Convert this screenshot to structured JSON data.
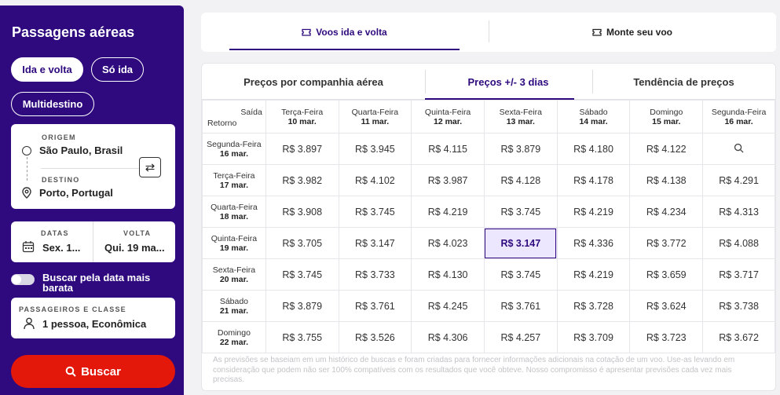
{
  "sidebar": {
    "title": "Passagens aéreas",
    "trip_types": [
      "Ida e volta",
      "Só ida",
      "Multidestino"
    ],
    "origin_label": "ORIGEM",
    "origin_value": "São Paulo, Brasil",
    "destination_label": "DESTINO",
    "destination_value": "Porto, Portugal",
    "swap_icon": "⇄",
    "dates_label": "DATAS",
    "dates_value": "Sex. 1...",
    "return_label": "VOLTA",
    "return_value": "Qui. 19 ma...",
    "cheapest_toggle_label": "Buscar pela data mais barata",
    "passengers_label": "PASSAGEIROS E CLASSE",
    "passengers_value": "1 pessoa, Econômica",
    "search_button": "Buscar"
  },
  "top_tabs": [
    "Voos ida e volta",
    "Monte seu voo"
  ],
  "sub_tabs": [
    "Preços por companhia aérea",
    "Preços +/- 3 dias",
    "Tendência de preços"
  ],
  "grid": {
    "corner_top": "Saída",
    "corner_bottom": "Retorno",
    "columns": [
      {
        "day": "Terça-Feira",
        "date": "10 mar."
      },
      {
        "day": "Quarta-Feira",
        "date": "11 mar."
      },
      {
        "day": "Quinta-Feira",
        "date": "12 mar."
      },
      {
        "day": "Sexta-Feira",
        "date": "13 mar."
      },
      {
        "day": "Sábado",
        "date": "14 mar."
      },
      {
        "day": "Domingo",
        "date": "15 mar."
      },
      {
        "day": "Segunda-Feira",
        "date": "16 mar."
      }
    ],
    "rows": [
      {
        "day": "Segunda-Feira",
        "date": "16 mar.",
        "prices": [
          "R$ 3.897",
          "R$ 3.945",
          "R$ 4.115",
          "R$ 3.879",
          "R$ 4.180",
          "R$ 4.122",
          ""
        ]
      },
      {
        "day": "Terça-Feira",
        "date": "17 mar.",
        "prices": [
          "R$ 3.982",
          "R$ 4.102",
          "R$ 3.987",
          "R$ 4.128",
          "R$ 4.178",
          "R$ 4.138",
          "R$ 4.291"
        ]
      },
      {
        "day": "Quarta-Feira",
        "date": "18 mar.",
        "prices": [
          "R$ 3.908",
          "R$ 3.745",
          "R$ 4.219",
          "R$ 3.745",
          "R$ 4.219",
          "R$ 4.234",
          "R$ 4.313"
        ]
      },
      {
        "day": "Quinta-Feira",
        "date": "19 mar.",
        "prices": [
          "R$ 3.705",
          "R$ 3.147",
          "R$ 4.023",
          "R$ 3.147",
          "R$ 4.336",
          "R$ 3.772",
          "R$ 4.088"
        ]
      },
      {
        "day": "Sexta-Feira",
        "date": "20 mar.",
        "prices": [
          "R$ 3.745",
          "R$ 3.733",
          "R$ 4.130",
          "R$ 3.745",
          "R$ 4.219",
          "R$ 3.659",
          "R$ 3.717"
        ]
      },
      {
        "day": "Sábado",
        "date": "21 mar.",
        "prices": [
          "R$ 3.879",
          "R$ 3.761",
          "R$ 4.245",
          "R$ 3.761",
          "R$ 3.728",
          "R$ 3.624",
          "R$ 3.738"
        ]
      },
      {
        "day": "Domingo",
        "date": "22 mar.",
        "prices": [
          "R$ 3.755",
          "R$ 3.526",
          "R$ 4.306",
          "R$ 4.257",
          "R$ 3.709",
          "R$ 3.723",
          "R$ 3.672"
        ]
      }
    ],
    "selected": {
      "row": 3,
      "col": 3
    }
  },
  "disclaimer": "As previsões se baseiam em um histórico de buscas e foram criadas para fornecer informações adicionais na cotação de um voo. Use-as levando em consideração que podem não ser 100% compatíveis com os resultados que você obteve. Nosso compromisso é apresentar previsões cada vez mais precisas.",
  "colors": {
    "brand": "#2e0a7e",
    "search": "#e3170a"
  }
}
